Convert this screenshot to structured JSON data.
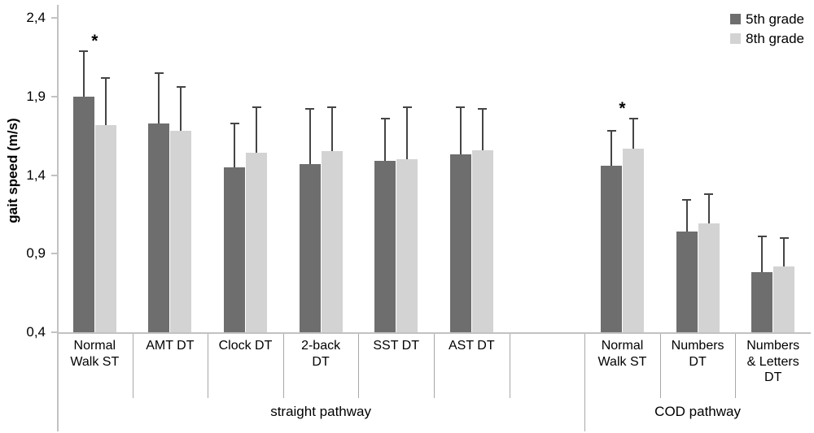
{
  "chart_data": {
    "type": "bar",
    "title": "",
    "ylabel": "gait speed (m/s)",
    "xlabel": "",
    "ylim": [
      0.4,
      2.4
    ],
    "grid": false,
    "legend_position": "top-right",
    "yticks": [
      {
        "value": 2.4,
        "label": "2,4"
      },
      {
        "value": 1.9,
        "label": "1,9"
      },
      {
        "value": 1.4,
        "label": "1,4"
      },
      {
        "value": 0.9,
        "label": "0,9"
      },
      {
        "value": 0.4,
        "label": "0,4"
      }
    ],
    "sections": [
      {
        "label": "straight pathway",
        "categories": [
          "Normal\nWalk ST",
          "AMT DT",
          "Clock DT",
          "2-back\nDT",
          "SST DT",
          "AST DT"
        ],
        "trailing_empty_slots": 1
      },
      {
        "label": "COD pathway",
        "categories": [
          "Normal\nWalk ST",
          "Numbers\nDT",
          "Numbers\n& Letters\nDT"
        ],
        "trailing_empty_slots": 0
      }
    ],
    "series": [
      {
        "name": "5th grade",
        "color": "#6e6e6e",
        "values": [
          1.9,
          1.73,
          1.45,
          1.47,
          1.49,
          1.53,
          1.46,
          1.04,
          0.78
        ],
        "errors_up": [
          0.29,
          0.32,
          0.28,
          0.35,
          0.27,
          0.3,
          0.22,
          0.2,
          0.23
        ]
      },
      {
        "name": "8th grade",
        "color": "#d3d3d3",
        "values": [
          1.72,
          1.68,
          1.54,
          1.55,
          1.5,
          1.56,
          1.57,
          1.09,
          0.82
        ],
        "errors_up": [
          0.3,
          0.28,
          0.29,
          0.28,
          0.33,
          0.26,
          0.19,
          0.19,
          0.18
        ]
      }
    ],
    "significance_marks": [
      {
        "pathway": "straight pathway",
        "category": "Normal\nWalk ST",
        "symbol": "*"
      },
      {
        "pathway": "COD pathway",
        "category": "Normal\nWalk ST",
        "symbol": "*"
      }
    ],
    "colors": {
      "error_bar": "#454545",
      "axis_line": "#c2c2c2",
      "divider_line": "#a8a8a8",
      "text": "#000000"
    }
  }
}
